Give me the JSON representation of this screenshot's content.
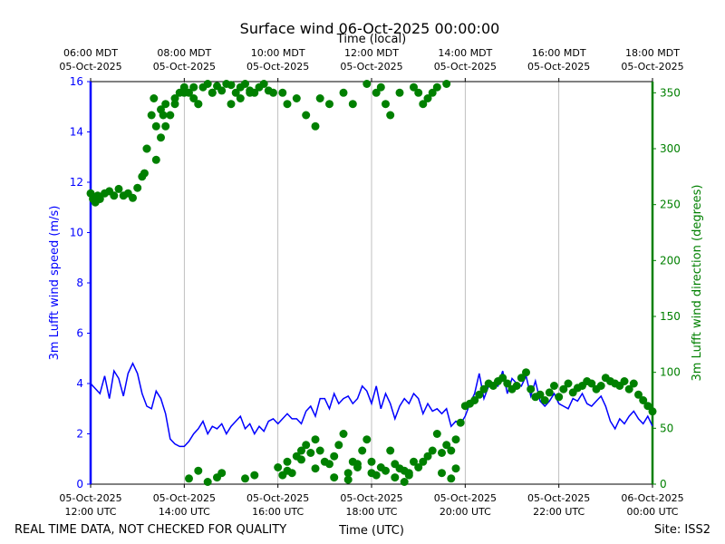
{
  "chart_data": {
    "type": "line",
    "title": "Surface wind 06-Oct-2025 00:00:00",
    "top_axis_label": "Time (local)",
    "xlabel": "Time (UTC)",
    "ylabel_left": "3m Lufft wind speed (m/s)",
    "ylabel_right": "3m Lufft wind direction (degrees)",
    "footer_left": "REAL TIME DATA, NOT CHECKED FOR QUALITY",
    "footer_right": "Site: ISS2",
    "x_range_hours_utc": [
      12,
      24
    ],
    "ylim_left": [
      0,
      16
    ],
    "ylim_right": [
      0,
      360
    ],
    "grid": "vertical",
    "bottom_ticks": [
      {
        "hour": 12,
        "date": "05-Oct-2025",
        "time": "12:00 UTC"
      },
      {
        "hour": 14,
        "date": "05-Oct-2025",
        "time": "14:00 UTC"
      },
      {
        "hour": 16,
        "date": "05-Oct-2025",
        "time": "16:00 UTC"
      },
      {
        "hour": 18,
        "date": "05-Oct-2025",
        "time": "18:00 UTC"
      },
      {
        "hour": 20,
        "date": "05-Oct-2025",
        "time": "20:00 UTC"
      },
      {
        "hour": 22,
        "date": "05-Oct-2025",
        "time": "22:00 UTC"
      },
      {
        "hour": 24,
        "date": "06-Oct-2025",
        "time": "00:00 UTC"
      }
    ],
    "top_ticks": [
      {
        "hour": 12,
        "time": "06:00 MDT",
        "date": "05-Oct-2025"
      },
      {
        "hour": 14,
        "time": "08:00 MDT",
        "date": "05-Oct-2025"
      },
      {
        "hour": 16,
        "time": "10:00 MDT",
        "date": "05-Oct-2025"
      },
      {
        "hour": 18,
        "time": "12:00 MDT",
        "date": "05-Oct-2025"
      },
      {
        "hour": 20,
        "time": "14:00 MDT",
        "date": "05-Oct-2025"
      },
      {
        "hour": 22,
        "time": "16:00 MDT",
        "date": "05-Oct-2025"
      },
      {
        "hour": 24,
        "time": "18:00 MDT",
        "date": "05-Oct-2025"
      }
    ],
    "left_ticks": [
      0,
      2,
      4,
      6,
      8,
      10,
      12,
      14,
      16
    ],
    "right_ticks": [
      0,
      50,
      100,
      150,
      200,
      250,
      300,
      350
    ],
    "series": [
      {
        "name": "wind speed",
        "axis": "left",
        "color": "#0000ff",
        "style": "line",
        "x": [
          12.0,
          12.1,
          12.2,
          12.3,
          12.4,
          12.5,
          12.6,
          12.7,
          12.8,
          12.9,
          13.0,
          13.1,
          13.2,
          13.3,
          13.4,
          13.5,
          13.6,
          13.7,
          13.8,
          13.9,
          14.0,
          14.1,
          14.2,
          14.3,
          14.4,
          14.5,
          14.6,
          14.7,
          14.8,
          14.9,
          15.0,
          15.1,
          15.2,
          15.3,
          15.4,
          15.5,
          15.6,
          15.7,
          15.8,
          15.9,
          16.0,
          16.1,
          16.2,
          16.3,
          16.4,
          16.5,
          16.6,
          16.7,
          16.8,
          16.9,
          17.0,
          17.1,
          17.2,
          17.3,
          17.4,
          17.5,
          17.6,
          17.7,
          17.8,
          17.9,
          18.0,
          18.1,
          18.2,
          18.3,
          18.4,
          18.5,
          18.6,
          18.7,
          18.8,
          18.9,
          19.0,
          19.1,
          19.2,
          19.3,
          19.4,
          19.5,
          19.6,
          19.7,
          19.8,
          19.9,
          20.0,
          20.1,
          20.2,
          20.3,
          20.4,
          20.5,
          20.6,
          20.7,
          20.8,
          20.9,
          21.0,
          21.1,
          21.2,
          21.3,
          21.4,
          21.5,
          21.6,
          21.7,
          21.8,
          21.9,
          22.0,
          22.1,
          22.2,
          22.3,
          22.4,
          22.5,
          22.6,
          22.7,
          22.8,
          22.9,
          23.0,
          23.1,
          23.2,
          23.3,
          23.4,
          23.5,
          23.6,
          23.7,
          23.8,
          23.9,
          24.0
        ],
        "values": [
          4.0,
          3.8,
          3.6,
          4.3,
          3.4,
          4.5,
          4.2,
          3.5,
          4.4,
          4.8,
          4.4,
          3.6,
          3.1,
          3.0,
          3.7,
          3.4,
          2.8,
          1.8,
          1.6,
          1.5,
          1.5,
          1.7,
          2.0,
          2.2,
          2.5,
          2.0,
          2.3,
          2.2,
          2.4,
          2.0,
          2.3,
          2.5,
          2.7,
          2.2,
          2.4,
          2.0,
          2.3,
          2.1,
          2.5,
          2.6,
          2.4,
          2.6,
          2.8,
          2.6,
          2.6,
          2.4,
          2.9,
          3.1,
          2.7,
          3.4,
          3.4,
          3.0,
          3.6,
          3.2,
          3.4,
          3.5,
          3.2,
          3.4,
          3.9,
          3.7,
          3.2,
          3.9,
          3.0,
          3.6,
          3.2,
          2.6,
          3.1,
          3.4,
          3.2,
          3.6,
          3.4,
          2.8,
          3.2,
          2.9,
          3.0,
          2.8,
          3.0,
          2.3,
          2.5,
          2.4,
          2.7,
          3.2,
          3.6,
          4.4,
          3.4,
          3.9,
          4.0,
          3.9,
          4.5,
          3.6,
          4.2,
          4.0,
          3.9,
          4.3,
          3.5,
          4.1,
          3.3,
          3.1,
          3.3,
          3.6,
          3.2,
          3.1,
          3.0,
          3.4,
          3.3,
          3.6,
          3.2,
          3.1,
          3.3,
          3.5,
          3.1,
          2.5,
          2.2,
          2.6,
          2.4,
          2.7,
          2.9,
          2.6,
          2.4,
          2.7,
          2.3
        ]
      },
      {
        "name": "wind direction",
        "axis": "right",
        "color": "#008000",
        "style": "markers",
        "x": [
          12.0,
          12.05,
          12.1,
          12.15,
          12.2,
          12.3,
          12.4,
          12.5,
          12.6,
          12.7,
          12.8,
          12.9,
          13.0,
          13.1,
          13.15,
          13.2,
          13.3,
          13.35,
          13.4,
          13.5,
          13.55,
          13.6,
          13.7,
          13.8,
          13.9,
          14.0,
          14.1,
          14.2,
          14.3,
          14.4,
          14.5,
          14.6,
          14.7,
          14.8,
          14.9,
          15.0,
          15.1,
          15.2,
          15.3,
          15.4,
          15.5,
          15.6,
          15.7,
          15.8,
          15.9,
          16.0,
          16.1,
          16.2,
          16.3,
          16.4,
          16.5,
          16.6,
          16.7,
          16.8,
          16.9,
          17.0,
          17.1,
          17.2,
          17.3,
          17.4,
          17.5,
          17.6,
          17.7,
          17.8,
          17.9,
          18.0,
          18.1,
          18.2,
          18.3,
          18.4,
          18.5,
          18.6,
          18.7,
          18.8,
          18.9,
          19.0,
          19.1,
          19.2,
          19.3,
          19.4,
          19.5,
          19.6,
          19.7,
          19.8,
          19.9,
          20.0,
          20.1,
          20.2,
          20.3,
          20.4,
          20.5,
          20.6,
          20.7,
          20.8,
          20.9,
          21.0,
          21.1,
          21.2,
          21.3,
          21.4,
          21.5,
          21.6,
          21.7,
          21.8,
          21.9,
          22.0,
          22.1,
          22.2,
          22.3,
          22.4,
          22.5,
          22.6,
          22.7,
          22.8,
          22.9,
          23.0,
          23.1,
          23.2,
          23.3,
          23.4,
          23.5,
          23.6,
          23.7,
          23.8,
          23.9,
          24.0,
          13.2,
          13.4,
          13.5,
          13.6,
          13.8,
          14.0,
          14.2,
          14.3,
          14.6,
          15.0,
          15.2,
          15.4,
          16.1,
          16.2,
          16.4,
          16.6,
          16.8,
          16.9,
          17.1,
          17.4,
          17.6,
          17.9,
          18.1,
          18.2,
          18.3,
          18.4,
          18.6,
          18.9,
          19.0,
          19.1,
          19.2,
          19.3,
          19.4,
          19.6,
          14.1,
          14.3,
          14.5,
          14.7,
          14.8,
          15.3,
          15.5,
          16.2,
          16.5,
          16.8,
          17.2,
          17.5,
          17.7,
          18.0,
          18.5,
          18.7,
          18.8,
          19.5,
          19.7,
          19.8
        ],
        "values": [
          260,
          255,
          252,
          258,
          255,
          260,
          262,
          258,
          264,
          258,
          260,
          256,
          265,
          275,
          278,
          300,
          330,
          345,
          320,
          335,
          330,
          340,
          330,
          345,
          350,
          355,
          350,
          345,
          340,
          355,
          358,
          350,
          356,
          352,
          358,
          357,
          350,
          355,
          358,
          352,
          350,
          355,
          358,
          352,
          350,
          15,
          8,
          20,
          10,
          25,
          30,
          35,
          28,
          40,
          30,
          20,
          18,
          25,
          35,
          45,
          10,
          20,
          15,
          30,
          40,
          20,
          8,
          15,
          12,
          30,
          18,
          14,
          12,
          10,
          20,
          15,
          20,
          25,
          30,
          45,
          28,
          35,
          30,
          40,
          55,
          70,
          72,
          75,
          80,
          85,
          90,
          88,
          92,
          95,
          90,
          85,
          88,
          95,
          100,
          85,
          78,
          80,
          75,
          82,
          88,
          78,
          85,
          90,
          82,
          86,
          88,
          92,
          90,
          85,
          88,
          95,
          92,
          90,
          88,
          92,
          85,
          90,
          80,
          75,
          70,
          65,
          300,
          290,
          310,
          320,
          340,
          350,
          355,
          340,
          350,
          340,
          345,
          350,
          350,
          340,
          345,
          330,
          320,
          345,
          340,
          350,
          340,
          358,
          350,
          355,
          340,
          330,
          350,
          355,
          350,
          340,
          345,
          350,
          355,
          358,
          5,
          12,
          2,
          6,
          10,
          5,
          8,
          12,
          22,
          14,
          6,
          4,
          18,
          10,
          6,
          2,
          8,
          10,
          5,
          14
        ]
      }
    ]
  }
}
